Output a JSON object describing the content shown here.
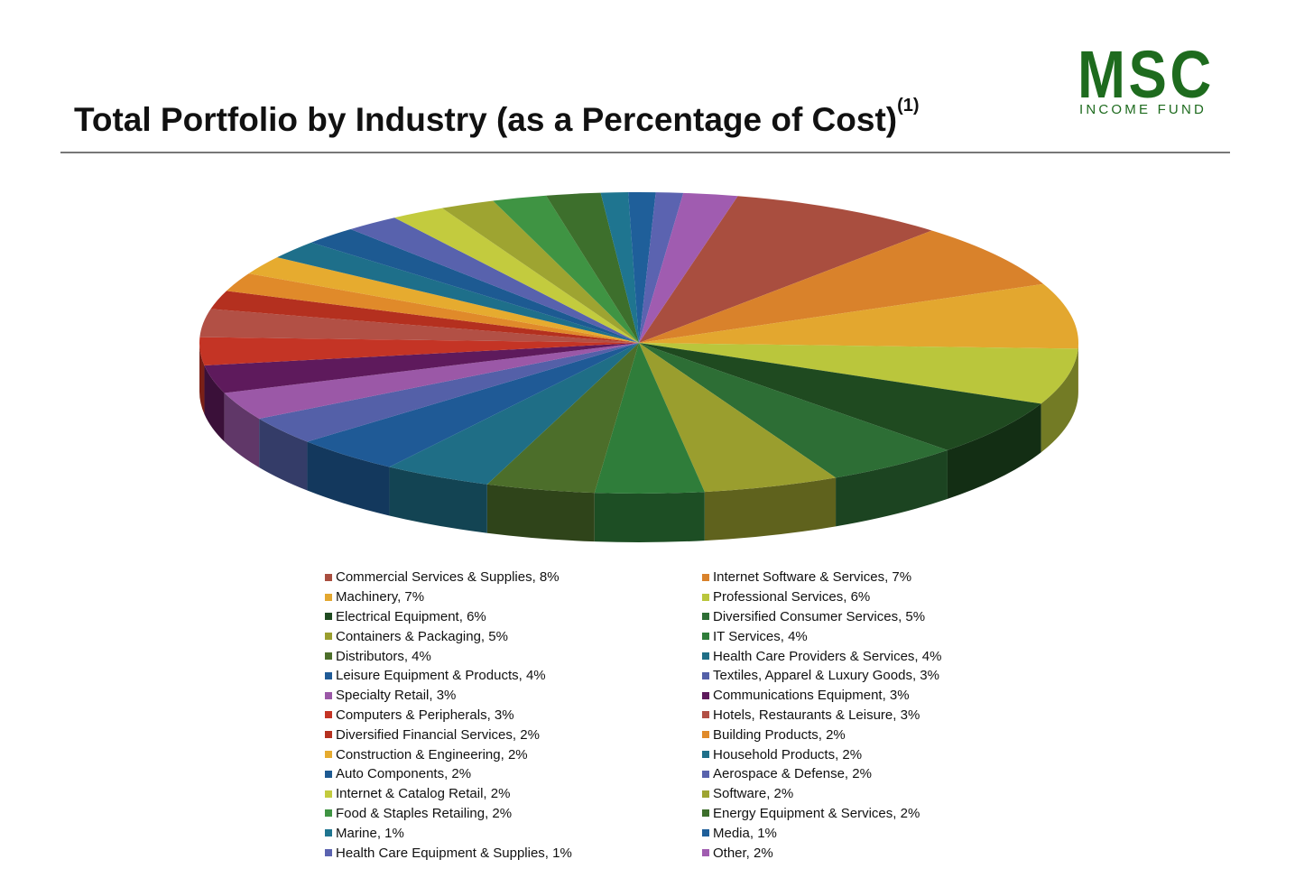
{
  "header": {
    "title": "Total Portfolio by Industry (as a Percentage of Cost)",
    "title_sup": "(1)"
  },
  "logo": {
    "main": "MSC",
    "sub": "INCOME FUND",
    "color": "#1e6b1e"
  },
  "chart_data": {
    "type": "pie",
    "title": "",
    "legend_position": "bottom",
    "slices": [
      {
        "label": "Commercial Services & Supplies, 8%",
        "name": "Commercial Services & Supplies",
        "value": 8,
        "color": "#a94e3f"
      },
      {
        "label": "Internet Software & Services, 7%",
        "name": "Internet Software & Services",
        "value": 7,
        "color": "#d9822b"
      },
      {
        "label": "Machinery, 7%",
        "name": "Machinery",
        "value": 7,
        "color": "#e3a72f"
      },
      {
        "label": "Professional Services, 6%",
        "name": "Professional Services",
        "value": 6,
        "color": "#bac63c"
      },
      {
        "label": "Electrical Equipment, 6%",
        "name": "Electrical Equipment",
        "value": 6,
        "color": "#1f4a20"
      },
      {
        "label": "Diversified Consumer Services, 5%",
        "name": "Diversified Consumer Services",
        "value": 5,
        "color": "#2d6e35"
      },
      {
        "label": "Containers & Packaging, 5%",
        "name": "Containers & Packaging",
        "value": 5,
        "color": "#9a9e2e"
      },
      {
        "label": "IT Services, 4%",
        "name": "IT Services",
        "value": 4,
        "color": "#2f7d3a"
      },
      {
        "label": "Distributors, 4%",
        "name": "Distributors",
        "value": 4,
        "color": "#4c6e2a"
      },
      {
        "label": "Health Care Providers & Services, 4%",
        "name": "Health Care Providers & Services",
        "value": 4,
        "color": "#1f6e86"
      },
      {
        "label": "Leisure Equipment & Products, 4%",
        "name": "Leisure Equipment & Products",
        "value": 4,
        "color": "#1f5a96"
      },
      {
        "label": "Textiles, Apparel & Luxury Goods, 3%",
        "name": "Textiles, Apparel & Luxury Goods",
        "value": 3,
        "color": "#5460a8"
      },
      {
        "label": "Specialty Retail, 3%",
        "name": "Specialty Retail",
        "value": 3,
        "color": "#9b58a7"
      },
      {
        "label": "Communications Equipment, 3%",
        "name": "Communications Equipment",
        "value": 3,
        "color": "#5e1a5c"
      },
      {
        "label": "Computers & Peripherals, 3%",
        "name": "Computers & Peripherals",
        "value": 3,
        "color": "#c43425"
      },
      {
        "label": "Hotels, Restaurants & Leisure, 3%",
        "name": "Hotels, Restaurants & Leisure",
        "value": 3,
        "color": "#b25045"
      },
      {
        "label": "Diversified Financial Services, 2%",
        "name": "Diversified Financial Services",
        "value": 2,
        "color": "#b4301f"
      },
      {
        "label": "Building Products, 2%",
        "name": "Building Products",
        "value": 2,
        "color": "#e08a2a"
      },
      {
        "label": "Construction & Engineering, 2%",
        "name": "Construction & Engineering",
        "value": 2,
        "color": "#e6ab2f"
      },
      {
        "label": "Household Products, 2%",
        "name": "Household Products",
        "value": 2,
        "color": "#1e6f8a"
      },
      {
        "label": "Auto Components, 2%",
        "name": "Auto Components",
        "value": 2,
        "color": "#1d5a92"
      },
      {
        "label": "Aerospace & Defense, 2%",
        "name": "Aerospace & Defense",
        "value": 2,
        "color": "#5862ad"
      },
      {
        "label": "Internet & Catalog Retail, 2%",
        "name": "Internet & Catalog Retail",
        "value": 2,
        "color": "#c3cb3e"
      },
      {
        "label": "Software, 2%",
        "name": "Software",
        "value": 2,
        "color": "#9ea431"
      },
      {
        "label": "Food & Staples Retailing, 2%",
        "name": "Food & Staples Retailing",
        "value": 2,
        "color": "#3f9443"
      },
      {
        "label": "Energy Equipment & Services, 2%",
        "name": "Energy Equipment & Services",
        "value": 2,
        "color": "#3d6f2c"
      },
      {
        "label": "Marine, 1%",
        "name": "Marine",
        "value": 1,
        "color": "#1f7590"
      },
      {
        "label": "Media, 1%",
        "name": "Media",
        "value": 1,
        "color": "#1f5f9a"
      },
      {
        "label": "Health Care Equipment & Supplies, 1%",
        "name": "Health Care Equipment & Supplies",
        "value": 1,
        "color": "#5b63b0"
      },
      {
        "label": "Other, 2%",
        "name": "Other",
        "value": 2,
        "color": "#a05cb0"
      }
    ]
  }
}
